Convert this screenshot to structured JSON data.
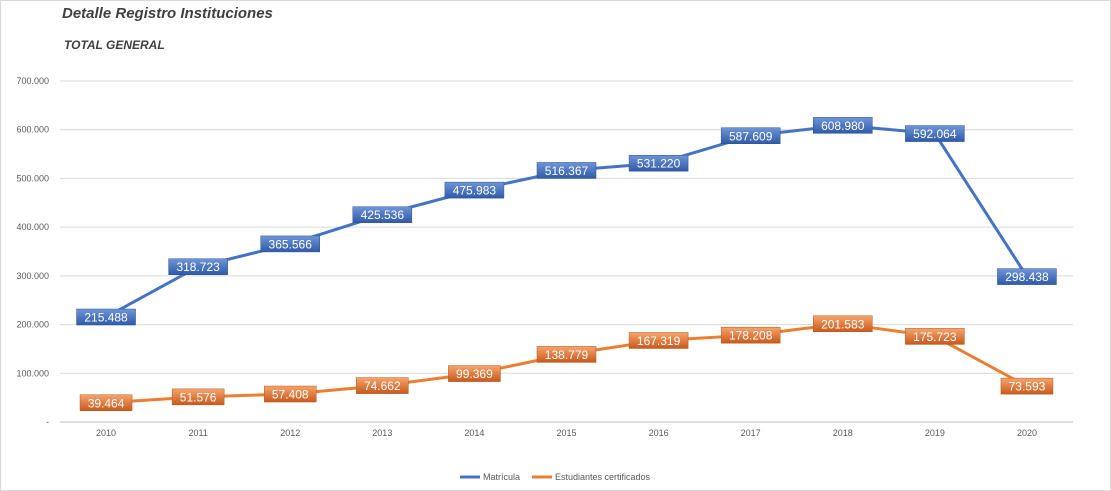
{
  "title": "Detalle Registro Instituciones",
  "subtitle": "TOTAL GENERAL",
  "chart_data": {
    "type": "line",
    "categories": [
      "2010",
      "2011",
      "2012",
      "2013",
      "2014",
      "2015",
      "2016",
      "2017",
      "2018",
      "2019",
      "2020"
    ],
    "ylim": [
      0,
      700000
    ],
    "y_ticks": [
      0,
      100000,
      200000,
      300000,
      400000,
      500000,
      600000,
      700000
    ],
    "y_tick_labels": [
      "-",
      "100.000",
      "200.000",
      "300.000",
      "400.000",
      "500.000",
      "600.000",
      "700.000"
    ],
    "grid": true,
    "legend_position": "bottom",
    "series": [
      {
        "name": "Matrícula",
        "color": "#4472c4",
        "values": [
          215488,
          318723,
          365566,
          425536,
          475983,
          516367,
          531220,
          587609,
          608980,
          592064,
          298438
        ],
        "labels": [
          "215.488",
          "318.723",
          "365.566",
          "425.536",
          "475.983",
          "516.367",
          "531.220",
          "587.609",
          "608.980",
          "592.064",
          "298.438"
        ]
      },
      {
        "name": "Estudiantes certificados",
        "color": "#ed7d31",
        "values": [
          39464,
          51576,
          57408,
          74662,
          99369,
          138779,
          167319,
          178208,
          201583,
          175723,
          73593
        ],
        "labels": [
          "39.464",
          "51.576",
          "57.408",
          "74.662",
          "99.369",
          "138.779",
          "167.319",
          "178.208",
          "201.583",
          "175.723",
          "73.593"
        ]
      }
    ]
  }
}
